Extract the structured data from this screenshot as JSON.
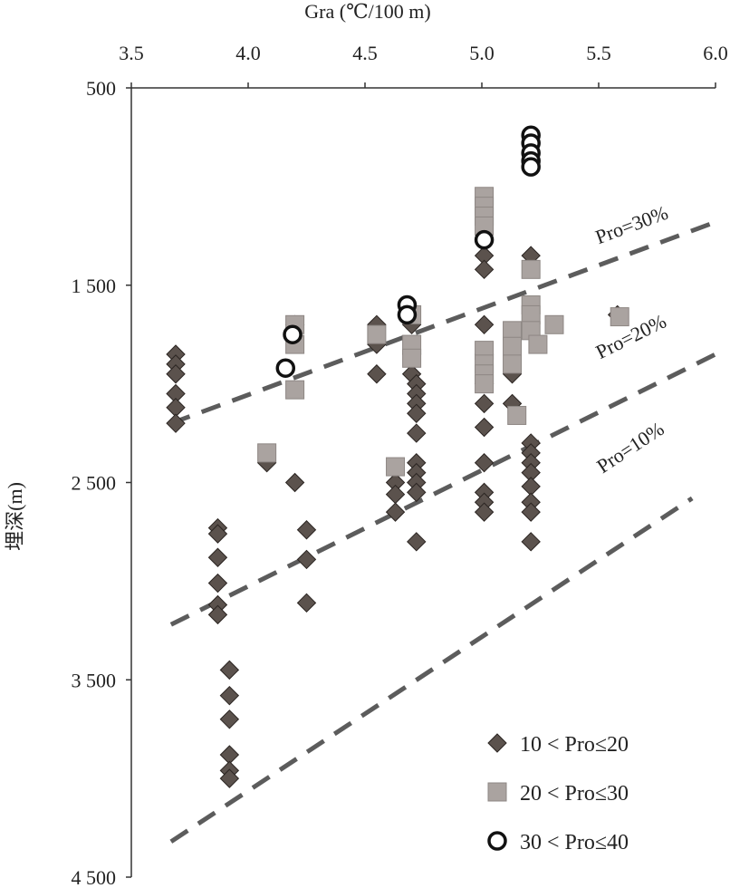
{
  "chart_data": {
    "type": "scatter",
    "title": "",
    "xlabel": "Gra (℃/100 m)",
    "ylabel": "埋深(m)",
    "xlim": [
      3.5,
      6.0
    ],
    "ylim": [
      500,
      4500
    ],
    "y_inverted": true,
    "x_axis_position": "top",
    "x_ticks": [
      "3.5",
      "4.0",
      "4.5",
      "5.0",
      "5.5",
      "6.0"
    ],
    "y_ticks": [
      "500",
      "1 500",
      "2 500",
      "3 500",
      "4 500"
    ],
    "grid": false,
    "legend_position": "bottom-right",
    "series": [
      {
        "name": "10 < Pro≤20",
        "marker": "diamond",
        "color": "#5b524d",
        "points": [
          [
            3.69,
            1850
          ],
          [
            3.69,
            1900
          ],
          [
            3.69,
            1950
          ],
          [
            3.69,
            2050
          ],
          [
            3.69,
            2120
          ],
          [
            3.69,
            2200
          ],
          [
            3.87,
            2730
          ],
          [
            3.87,
            2760
          ],
          [
            3.87,
            2880
          ],
          [
            3.87,
            3010
          ],
          [
            3.87,
            3120
          ],
          [
            3.87,
            3170
          ],
          [
            3.92,
            3450
          ],
          [
            3.92,
            3580
          ],
          [
            3.92,
            3700
          ],
          [
            3.92,
            3880
          ],
          [
            3.92,
            3960
          ],
          [
            3.92,
            4000
          ],
          [
            4.08,
            2400
          ],
          [
            4.2,
            1700
          ],
          [
            4.2,
            2500
          ],
          [
            4.25,
            2740
          ],
          [
            4.25,
            2890
          ],
          [
            4.25,
            3110
          ],
          [
            4.55,
            1700
          ],
          [
            4.55,
            1800
          ],
          [
            4.55,
            1950
          ],
          [
            4.63,
            2500
          ],
          [
            4.63,
            2560
          ],
          [
            4.63,
            2650
          ],
          [
            4.7,
            1700
          ],
          [
            4.7,
            1850
          ],
          [
            4.7,
            1950
          ],
          [
            4.72,
            2000
          ],
          [
            4.72,
            2050
          ],
          [
            4.72,
            2100
          ],
          [
            4.72,
            2150
          ],
          [
            4.72,
            2250
          ],
          [
            4.72,
            2400
          ],
          [
            4.72,
            2450
          ],
          [
            4.72,
            2500
          ],
          [
            4.72,
            2550
          ],
          [
            4.72,
            2800
          ],
          [
            5.01,
            1350
          ],
          [
            5.01,
            1420
          ],
          [
            5.01,
            1700
          ],
          [
            5.01,
            1850
          ],
          [
            5.01,
            2000
          ],
          [
            5.01,
            2100
          ],
          [
            5.01,
            2220
          ],
          [
            5.01,
            2400
          ],
          [
            5.01,
            2550
          ],
          [
            5.01,
            2600
          ],
          [
            5.01,
            2650
          ],
          [
            5.13,
            1950
          ],
          [
            5.13,
            2100
          ],
          [
            5.21,
            1350
          ],
          [
            5.21,
            2300
          ],
          [
            5.21,
            2350
          ],
          [
            5.21,
            2400
          ],
          [
            5.21,
            2450
          ],
          [
            5.21,
            2520
          ],
          [
            5.21,
            2600
          ],
          [
            5.21,
            2650
          ],
          [
            5.21,
            2800
          ],
          [
            5.58,
            1650
          ]
        ]
      },
      {
        "name": "20 < Pro≤30",
        "marker": "square",
        "color": "#aaa3a0",
        "points": [
          [
            4.08,
            2350
          ],
          [
            4.2,
            1700
          ],
          [
            4.2,
            1800
          ],
          [
            4.2,
            2030
          ],
          [
            4.55,
            1750
          ],
          [
            4.63,
            2420
          ],
          [
            4.7,
            1650
          ],
          [
            4.7,
            1800
          ],
          [
            4.7,
            1870
          ],
          [
            5.01,
            1050
          ],
          [
            5.01,
            1100
          ],
          [
            5.01,
            1150
          ],
          [
            5.01,
            1200
          ],
          [
            5.01,
            1830
          ],
          [
            5.01,
            1900
          ],
          [
            5.01,
            1950
          ],
          [
            5.01,
            2000
          ],
          [
            5.13,
            1730
          ],
          [
            5.13,
            1810
          ],
          [
            5.13,
            1900
          ],
          [
            5.15,
            2160
          ],
          [
            5.21,
            1420
          ],
          [
            5.21,
            1600
          ],
          [
            5.21,
            1650
          ],
          [
            5.21,
            1730
          ],
          [
            5.24,
            1800
          ],
          [
            5.31,
            1700
          ],
          [
            5.59,
            1660
          ]
        ]
      },
      {
        "name": "30 < Pro≤40",
        "marker": "circle",
        "color": "#ffffff",
        "points": [
          [
            4.16,
            1920
          ],
          [
            4.19,
            1750
          ],
          [
            4.68,
            1600
          ],
          [
            4.68,
            1650
          ],
          [
            5.01,
            1270
          ],
          [
            5.21,
            740
          ],
          [
            5.21,
            780
          ],
          [
            5.21,
            830
          ],
          [
            5.21,
            870
          ],
          [
            5.21,
            900
          ]
        ]
      }
    ],
    "reference_lines": [
      {
        "label": "Pro=30%",
        "points": [
          [
            3.67,
            2200
          ],
          [
            6.0,
            1180
          ]
        ]
      },
      {
        "label": "Pro=20%",
        "points": [
          [
            3.67,
            3220
          ],
          [
            6.0,
            1850
          ]
        ]
      },
      {
        "label": "Pro=10%",
        "points": [
          [
            3.67,
            4320
          ],
          [
            5.9,
            2580
          ]
        ]
      }
    ]
  }
}
